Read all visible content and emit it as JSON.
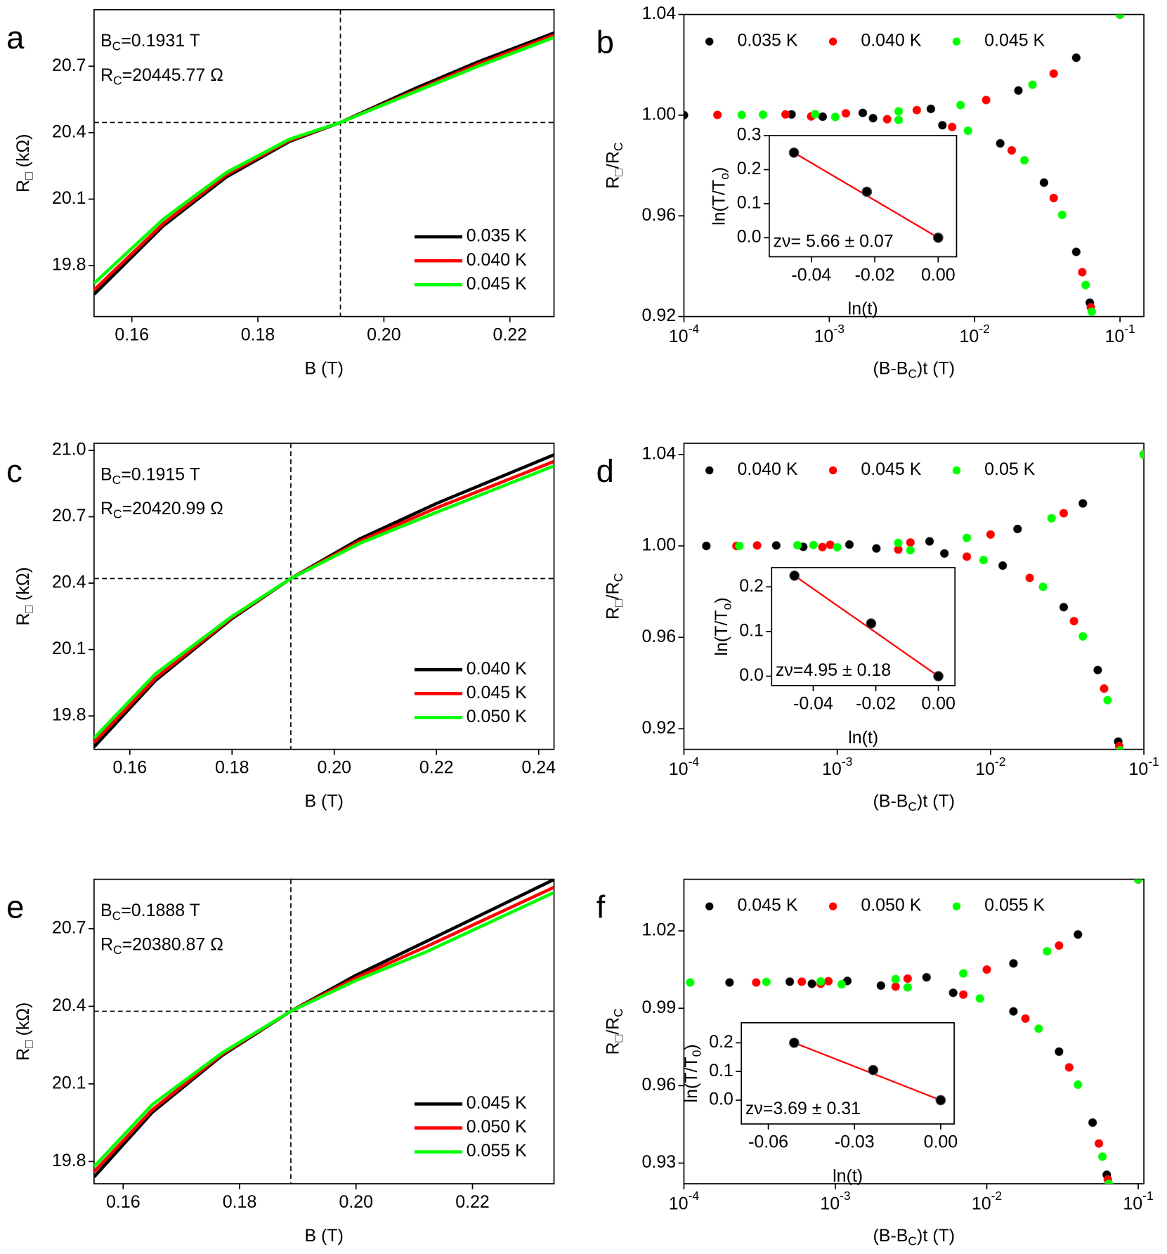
{
  "chart_data": [
    {
      "type": "line",
      "panel": "a",
      "annotations": [
        [
          "B",
          "C",
          "=0.1931 T"
        ],
        [
          "R",
          "C",
          "=20445.77 Ω"
        ]
      ],
      "xlabel": [
        "B (T)"
      ],
      "ylabel": [
        "R",
        "□",
        " (kΩ)"
      ],
      "x": [
        0.154,
        0.165,
        0.175,
        0.185,
        0.1931,
        0.205,
        0.215,
        0.227
      ],
      "series": [
        {
          "name": "0.035 K",
          "color": "#000000",
          "values": [
            19.67,
            19.98,
            20.2,
            20.36,
            20.446,
            20.6,
            20.72,
            20.85
          ]
        },
        {
          "name": "0.040 K",
          "color": "#ff0000",
          "values": [
            19.69,
            19.99,
            20.21,
            20.365,
            20.446,
            20.59,
            20.71,
            20.84
          ]
        },
        {
          "name": "0.045 K",
          "color": "#00ff00",
          "values": [
            19.72,
            20.01,
            20.22,
            20.37,
            20.446,
            20.585,
            20.7,
            20.83
          ]
        }
      ],
      "xlim": [
        0.154,
        0.227
      ],
      "ylim": [
        19.57,
        20.955
      ],
      "xticks": [
        0.16,
        0.18,
        {
          "value": 0.2,
          "label": "0.20"
        },
        0.22
      ],
      "yticks": [
        19.8,
        20.1,
        20.4,
        20.7
      ],
      "vline": 0.1931,
      "hline": 20.44577,
      "legend": "lower right"
    },
    {
      "type": "scatter",
      "panel": "b",
      "xlabel": [
        "(B-B",
        "C",
        ")t (T)"
      ],
      "ylabel": [
        "R",
        "□",
        "/R",
        "C"
      ],
      "xscale": "log",
      "legend": "upper",
      "series": [
        {
          "name": "0.035 K",
          "color": "#000000",
          "x": [
            0.0001,
            0.00055,
            0.0017,
            0.005,
            0.02,
            0.05,
            0.1,
            0.0009,
            0.002,
            0.006,
            0.015,
            0.03,
            0.05,
            0.062
          ],
          "values": [
            1.0,
            1.0003,
            1.0009,
            1.0025,
            1.0098,
            1.0228,
            1.04,
            0.9994,
            0.9988,
            0.996,
            0.9888,
            0.9732,
            0.9457,
            0.9255
          ]
        },
        {
          "name": "0.040 K",
          "color": "#ff0000",
          "x": [
            0.00017,
            0.0005,
            0.0013,
            0.004,
            0.012,
            0.035,
            0.1,
            0.00075,
            0.0025,
            0.007,
            0.018,
            0.035,
            0.055,
            0.063
          ],
          "values": [
            1.0001,
            1.0003,
            1.0007,
            1.002,
            1.006,
            1.0165,
            1.04,
            0.9995,
            0.9984,
            0.9953,
            0.986,
            0.9671,
            0.9376,
            0.9237
          ]
        },
        {
          "name": "0.045 K",
          "color": "#00ff00",
          "x": [
            0.00025,
            0.00035,
            0.0008,
            0.003,
            0.008,
            0.025,
            0.1,
            0.0011,
            0.003,
            0.009,
            0.022,
            0.04,
            0.058,
            0.064
          ],
          "values": [
            1.0001,
            1.0002,
            1.0004,
            1.0015,
            1.004,
            1.0121,
            1.04,
            0.9993,
            0.9981,
            0.9938,
            0.9821,
            0.9604,
            0.9325,
            0.9219
          ]
        }
      ],
      "xlim": [
        0.0001,
        0.146
      ],
      "ylim": [
        0.92,
        1.04
      ],
      "xticks": [
        {
          "value": 0.0001,
          "label": [
            "10",
            "-4"
          ]
        },
        {
          "value": 0.001,
          "label": [
            "10",
            "-3"
          ]
        },
        {
          "value": 0.01,
          "label": [
            "10",
            "-2"
          ]
        },
        {
          "value": 0.1,
          "label": [
            "10",
            "-1"
          ]
        }
      ],
      "yticks": [
        0.92,
        0.96,
        {
          "value": 1,
          "label": "1.00"
        },
        1.04
      ],
      "inset": {
        "type": "scatter",
        "xlabel": [
          "ln(t)"
        ],
        "ylabel": [
          "ln(T/T",
          "o",
          ")"
        ],
        "x": [
          -0.0455,
          -0.0225,
          0.0
        ],
        "values": [
          0.25,
          0.135,
          0.0
        ],
        "color": "#000000",
        "fit_color": "#ff0000",
        "xlim": [
          -0.0533,
          0.0058
        ],
        "ylim": [
          -0.056,
          0.3
        ],
        "xticks": [
          -0.04,
          -0.02,
          {
            "value": 0,
            "label": "0.00"
          }
        ],
        "yticks": [
          {
            "value": 0,
            "label": "0.0"
          },
          0.1,
          0.2,
          0.3
        ],
        "annotation": "zν= 5.66 ± 0.07"
      }
    },
    {
      "type": "line",
      "panel": "c",
      "annotations": [
        [
          "B",
          "C",
          "=0.1915 T"
        ],
        [
          "R",
          "C",
          "=20420.99 Ω"
        ]
      ],
      "xlabel": [
        "B (T)"
      ],
      "ylabel": [
        "R",
        "□",
        " (kΩ)"
      ],
      "x": [
        0.153,
        0.165,
        0.18,
        0.1915,
        0.205,
        0.22,
        0.243
      ],
      "series": [
        {
          "name": "0.040 K",
          "color": "#000000",
          "values": [
            19.66,
            19.96,
            20.24,
            20.421,
            20.6,
            20.76,
            20.98
          ]
        },
        {
          "name": "0.045 K",
          "color": "#ff0000",
          "values": [
            19.68,
            19.97,
            20.245,
            20.421,
            20.59,
            20.74,
            20.95
          ]
        },
        {
          "name": "0.050 K",
          "color": "#00ff00",
          "values": [
            19.7,
            19.99,
            20.25,
            20.421,
            20.58,
            20.72,
            20.93
          ]
        }
      ],
      "xlim": [
        0.153,
        0.243
      ],
      "ylim": [
        19.649,
        21.032
      ],
      "xticks": [
        0.16,
        0.18,
        {
          "value": 0.2,
          "label": "0.20"
        },
        0.22,
        0.24
      ],
      "yticks": [
        19.8,
        20.1,
        20.4,
        20.7,
        {
          "value": 21,
          "label": "21.0"
        }
      ],
      "vline": 0.1915,
      "hline": 20.42099,
      "legend": "lower right"
    },
    {
      "type": "scatter",
      "panel": "d",
      "xlabel": [
        "(B-B",
        "C",
        ")t (T)"
      ],
      "ylabel": [
        "R",
        "□",
        "/R",
        "C"
      ],
      "xscale": "log",
      "legend": "upper",
      "series": [
        {
          "name": "0.040 K",
          "color": "#000000",
          "x": [
            0.00014,
            0.0004,
            0.0012,
            0.004,
            0.015,
            0.04,
            0.1,
            0.0006,
            0.0018,
            0.005,
            0.012,
            0.03,
            0.05,
            0.068
          ],
          "values": [
            1.0,
            1.0002,
            1.0006,
            1.002,
            1.0074,
            1.0186,
            1.04,
            0.9996,
            0.9989,
            0.9967,
            0.9914,
            0.9732,
            0.9457,
            0.9144
          ]
        },
        {
          "name": "0.045 K",
          "color": "#ff0000",
          "x": [
            0.00022,
            0.0003,
            0.0009,
            0.003,
            0.01,
            0.03,
            0.1,
            0.0008,
            0.0025,
            0.007,
            0.018,
            0.035,
            0.055,
            0.069
          ],
          "values": [
            1.0,
            1.0002,
            1.0005,
            1.0015,
            1.005,
            1.0143,
            1.04,
            0.9995,
            0.9984,
            0.9953,
            0.986,
            0.9671,
            0.9376,
            0.9124
          ]
        },
        {
          "name": "0.05 K",
          "color": "#00ff00",
          "x": [
            0.00023,
            0.00055,
            0.0007,
            0.0025,
            0.007,
            0.025,
            0.1,
            0.001,
            0.003,
            0.009,
            0.022,
            0.04,
            0.058,
            0.07
          ],
          "values": [
            1.0,
            1.0003,
            1.0004,
            1.0013,
            1.0035,
            1.0121,
            1.04,
            0.9994,
            0.9981,
            0.9938,
            0.9821,
            0.9604,
            0.9325,
            0.9105
          ]
        }
      ],
      "xlim": [
        0.0001,
        0.1
      ],
      "ylim": [
        0.911,
        1.0449
      ],
      "xticks": [
        {
          "value": 0.0001,
          "label": [
            "10",
            "-4"
          ]
        },
        {
          "value": 0.001,
          "label": [
            "10",
            "-3"
          ]
        },
        {
          "value": 0.01,
          "label": [
            "10",
            "-2"
          ]
        },
        {
          "value": 0.1,
          "label": [
            "10",
            "-1"
          ]
        }
      ],
      "yticks": [
        0.92,
        0.96,
        {
          "value": 1,
          "label": "1.00"
        },
        1.04
      ],
      "inset": {
        "type": "scatter",
        "xlabel": [
          "ln(t)"
        ],
        "ylabel": [
          "ln(T/T",
          "o",
          ")"
        ],
        "x": [
          -0.046,
          -0.0215,
          0.0
        ],
        "values": [
          0.225,
          0.118,
          0.0
        ],
        "color": "#000000",
        "fit_color": "#ff0000",
        "xlim": [
          -0.0533,
          0.0053
        ],
        "ylim": [
          -0.021,
          0.243
        ],
        "xticks": [
          -0.04,
          -0.02,
          {
            "value": 0,
            "label": "0.00"
          }
        ],
        "yticks": [
          {
            "value": 0,
            "label": "0.0"
          },
          0.1,
          0.2
        ],
        "annotation": "zν=4.95 ± 0.18"
      }
    },
    {
      "type": "line",
      "panel": "e",
      "annotations": [
        [
          "B",
          "C",
          "=0.1888 T"
        ],
        [
          "R",
          "C",
          "=20380.87 Ω"
        ]
      ],
      "xlabel": [
        "B (T)"
      ],
      "ylabel": [
        "R",
        "□",
        " (kΩ)"
      ],
      "x": [
        0.155,
        0.165,
        0.177,
        0.1888,
        0.2,
        0.212,
        0.234
      ],
      "series": [
        {
          "name": "0.045 K",
          "color": "#000000",
          "values": [
            19.74,
            19.99,
            20.21,
            20.381,
            20.52,
            20.65,
            20.89
          ]
        },
        {
          "name": "0.050 K",
          "color": "#ff0000",
          "values": [
            19.76,
            20.0,
            20.215,
            20.381,
            20.51,
            20.63,
            20.86
          ]
        },
        {
          "name": "0.055 K",
          "color": "#00ff00",
          "values": [
            19.78,
            20.02,
            20.22,
            20.381,
            20.5,
            20.61,
            20.84
          ]
        }
      ],
      "xlim": [
        0.155,
        0.234
      ],
      "ylim": [
        19.714,
        20.891
      ],
      "xticks": [
        0.16,
        0.18,
        {
          "value": 0.2,
          "label": "0.20"
        },
        0.22
      ],
      "yticks": [
        19.8,
        20.1,
        20.4,
        20.7
      ],
      "vline": 0.1888,
      "hline": 20.38087,
      "legend": "lower right"
    },
    {
      "type": "scatter",
      "panel": "f",
      "xlabel": [
        "(B-B",
        "C",
        ")t (T)"
      ],
      "ylabel": [
        "R",
        "□",
        "/R",
        "C"
      ],
      "xscale": "log",
      "legend": "upper",
      "series": [
        {
          "name": "0.045 K",
          "color": "#000000",
          "x": [
            0.0002,
            0.0005,
            0.0012,
            0.004,
            0.015,
            0.04,
            0.1,
            0.0007,
            0.002,
            0.006,
            0.015,
            0.03,
            0.05,
            0.062
          ],
          "values": [
            1.0,
            1.0003,
            1.0006,
            1.002,
            1.0074,
            1.0186,
            1.04,
            0.9995,
            0.9988,
            0.996,
            0.9888,
            0.9732,
            0.9457,
            0.9255
          ]
        },
        {
          "name": "0.050 K",
          "color": "#ff0000",
          "x": [
            0.0003,
            0.0006,
            0.0009,
            0.003,
            0.01,
            0.03,
            0.1,
            0.0008,
            0.0025,
            0.007,
            0.018,
            0.035,
            0.055,
            0.063
          ],
          "values": [
            1.0,
            1.0003,
            1.0005,
            1.0015,
            1.005,
            1.0143,
            1.04,
            0.9995,
            0.9984,
            0.9953,
            0.986,
            0.9671,
            0.9376,
            0.9237
          ]
        },
        {
          "name": "0.055 K",
          "color": "#00ff00",
          "x": [
            0.00011,
            0.00035,
            0.0008,
            0.0025,
            0.007,
            0.025,
            0.1,
            0.0011,
            0.003,
            0.009,
            0.022,
            0.04,
            0.058,
            0.064
          ],
          "values": [
            1.0,
            1.0002,
            1.0004,
            1.0013,
            1.0035,
            1.0121,
            1.04,
            0.9993,
            0.9981,
            0.9938,
            0.9821,
            0.9604,
            0.9325,
            0.9219
          ]
        }
      ],
      "xlim": [
        0.0001,
        0.109
      ],
      "ylim": [
        0.922,
        1.04
      ],
      "xticks": [
        {
          "value": 0.0001,
          "label": [
            "10",
            "-4"
          ]
        },
        {
          "value": 0.001,
          "label": [
            "10",
            "-3"
          ]
        },
        {
          "value": 0.01,
          "label": [
            "10",
            "-2"
          ]
        },
        {
          "value": 0.1,
          "label": [
            "10",
            "-1"
          ]
        }
      ],
      "yticks": [
        0.93,
        0.96,
        0.99,
        1.02
      ],
      "inset": {
        "type": "scatter",
        "xlabel": [
          "ln(t)"
        ],
        "ylabel": [
          "ln(T/T",
          "0",
          ")"
        ],
        "x": [
          -0.051,
          -0.0235,
          0.0
        ],
        "values": [
          0.2,
          0.105,
          0.0
        ],
        "color": "#000000",
        "fit_color": "#ff0000",
        "xlim": [
          -0.0694,
          0.0047
        ],
        "ylim": [
          -0.083,
          0.27
        ],
        "xticks": [
          -0.06,
          -0.03,
          {
            "value": 0,
            "label": "0.00"
          }
        ],
        "yticks": [
          {
            "value": 0,
            "label": "0.0"
          },
          0.1,
          0.2
        ],
        "annotation": "zν=3.69 ± 0.31"
      }
    }
  ]
}
